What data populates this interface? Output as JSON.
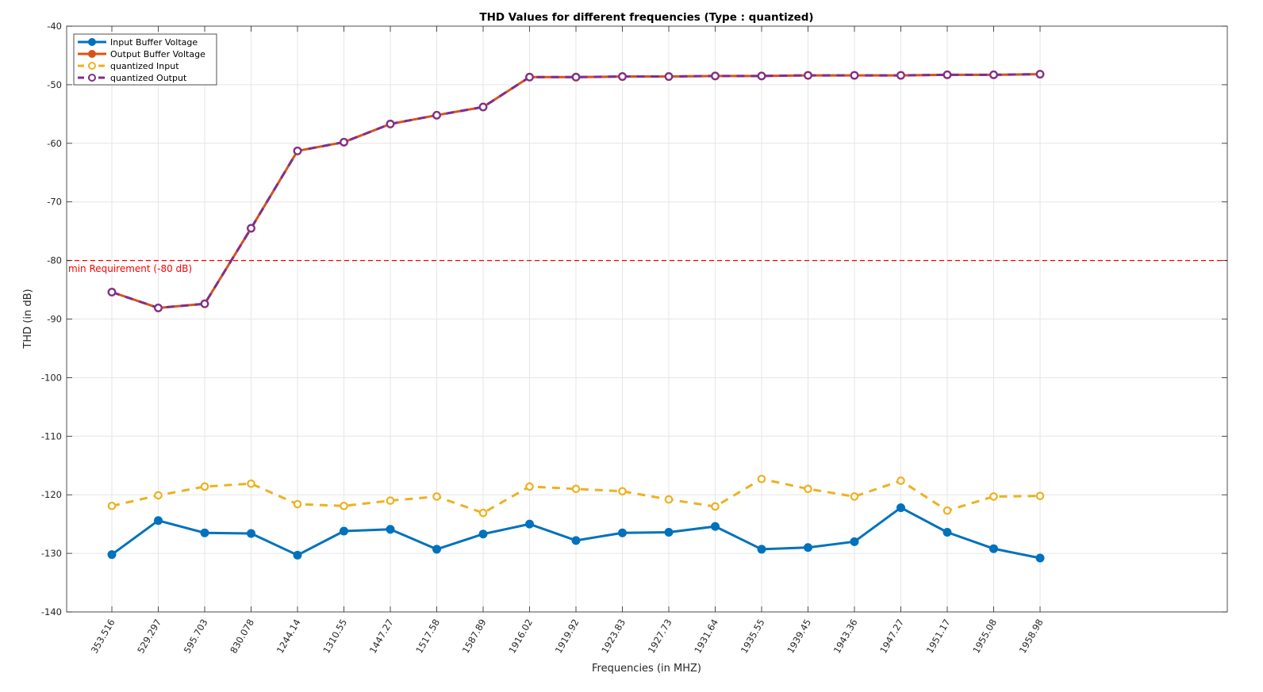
{
  "chart_data": {
    "type": "line",
    "title": "THD Values for different frequencies (Type : quantized)",
    "xlabel": "Frequencies (in MHZ)",
    "ylabel": "THD (in dB)",
    "ylim": [
      -140,
      -40
    ],
    "yticks": [
      -40,
      -50,
      -60,
      -70,
      -80,
      -90,
      -100,
      -110,
      -120,
      -130,
      -140
    ],
    "grid": true,
    "legend_position": "top-left",
    "categories": [
      "353.516",
      "529.297",
      "595.703",
      "830.078",
      "1244.14",
      "1310.55",
      "1447.27",
      "1517.58",
      "1587.89",
      "1916.02",
      "1919.92",
      "1923.83",
      "1927.73",
      "1931.64",
      "1935.55",
      "1939.45",
      "1943.36",
      "1947.27",
      "1951.17",
      "1955.08",
      "1958.98"
    ],
    "series": [
      {
        "name": "Input Buffer Voltage",
        "color": "#0072BD",
        "line_style": "solid",
        "marker": "filled-circle",
        "values": [
          -130.2,
          -124.4,
          -126.5,
          -126.6,
          -130.3,
          -126.2,
          -125.9,
          -129.3,
          -126.7,
          -125.0,
          -127.8,
          -126.5,
          -126.4,
          -125.4,
          -129.3,
          -129.0,
          -128.0,
          -122.2,
          -126.4,
          -129.2,
          -130.8
        ]
      },
      {
        "name": "Output Buffer Voltage",
        "color": "#D95319",
        "line_style": "solid",
        "marker": "filled-circle",
        "values": [
          -85.4,
          -88.1,
          -87.4,
          -74.5,
          -61.3,
          -59.8,
          -56.7,
          -55.2,
          -53.8,
          -48.7,
          -48.7,
          -48.6,
          -48.6,
          -48.5,
          -48.5,
          -48.4,
          -48.4,
          -48.4,
          -48.3,
          -48.3,
          -48.2
        ]
      },
      {
        "name": "quantized Input",
        "color": "#EDB120",
        "line_style": "dashed",
        "marker": "open-circle",
        "values": [
          -121.9,
          -120.1,
          -118.6,
          -118.1,
          -121.6,
          -121.9,
          -121.0,
          -120.3,
          -123.1,
          -118.6,
          -119.0,
          -119.4,
          -120.8,
          -122.0,
          -117.3,
          -119.0,
          -120.3,
          -117.6,
          -122.7,
          -120.3,
          -120.2
        ]
      },
      {
        "name": "quantized Output",
        "color": "#7E2F8E",
        "line_style": "dashed",
        "marker": "open-circle",
        "values": [
          -85.4,
          -88.1,
          -87.4,
          -74.5,
          -61.3,
          -59.8,
          -56.7,
          -55.2,
          -53.8,
          -48.7,
          -48.7,
          -48.6,
          -48.6,
          -48.5,
          -48.5,
          -48.4,
          -48.4,
          -48.4,
          -48.3,
          -48.3,
          -48.2
        ]
      }
    ],
    "reference_line": {
      "value": -80,
      "label": "min Requirement (-80 dB)",
      "color": "#FF0000",
      "line_style": "dashed"
    }
  }
}
